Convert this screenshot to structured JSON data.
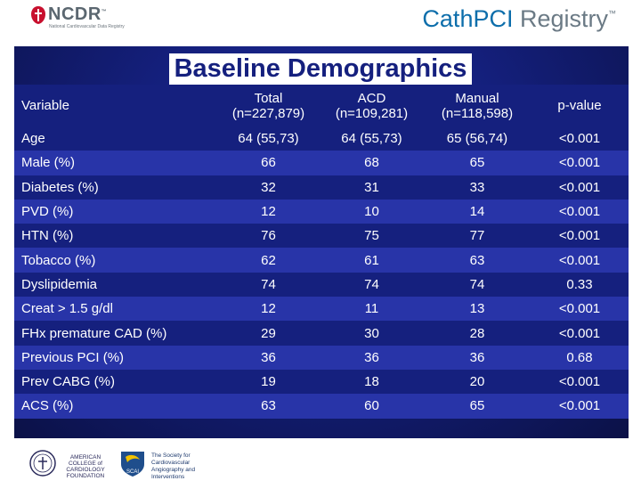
{
  "header": {
    "ncdr_logo_text": "NCDR",
    "ncdr_tm": "™",
    "ncdr_subtitle": "National Cardiovascular Data Registry",
    "registry_brand": "CathPCI",
    "registry_word": " Registry",
    "registry_tm": "™"
  },
  "slide": {
    "title": "Baseline Demographics"
  },
  "table": {
    "headers": [
      [
        "Variable"
      ],
      [
        "Total",
        "(n=227,879)"
      ],
      [
        "ACD",
        "(n=109,281)"
      ],
      [
        "Manual",
        "(n=118,598)"
      ],
      [
        "p-value"
      ]
    ],
    "rows": [
      [
        "Age",
        "64 (55,73)",
        "64 (55,73)",
        "65 (56,74)",
        "<0.001"
      ],
      [
        "Male (%)",
        "66",
        "68",
        "65",
        "<0.001"
      ],
      [
        "Diabetes (%)",
        "32",
        "31",
        "33",
        "<0.001"
      ],
      [
        "PVD (%)",
        "12",
        "10",
        "14",
        "<0.001"
      ],
      [
        "HTN (%)",
        "76",
        "75",
        "77",
        "<0.001"
      ],
      [
        "Tobacco (%)",
        "62",
        "61",
        "63",
        "<0.001"
      ],
      [
        "Dyslipidemia",
        "74",
        "74",
        "74",
        "0.33"
      ],
      [
        "Creat > 1.5 g/dl",
        "12",
        "11",
        "13",
        "<0.001"
      ],
      [
        "FHx premature CAD  (%)",
        "29",
        "30",
        "28",
        "<0.001"
      ],
      [
        "Previous PCI (%)",
        "36",
        "36",
        "36",
        "0.68"
      ],
      [
        "Prev CABG (%)",
        "19",
        "18",
        "20",
        "<0.001"
      ],
      [
        "ACS (%)",
        "63",
        "60",
        "65",
        "<0.001"
      ]
    ]
  },
  "footer": {
    "acc_lines": [
      "AMERICAN",
      "COLLEGE of",
      "CARDIOLOGY",
      "FOUNDATION"
    ],
    "scai_abbrev": "SCAI",
    "scai_lines": [
      "The Society for Cardiovascular",
      "Angiography and Interventions"
    ]
  },
  "colors": {
    "navy": "#15207e",
    "band_blue": "#2834a8",
    "brand_blue": "#0d6eab",
    "ncdr_red": "#c8102e"
  }
}
